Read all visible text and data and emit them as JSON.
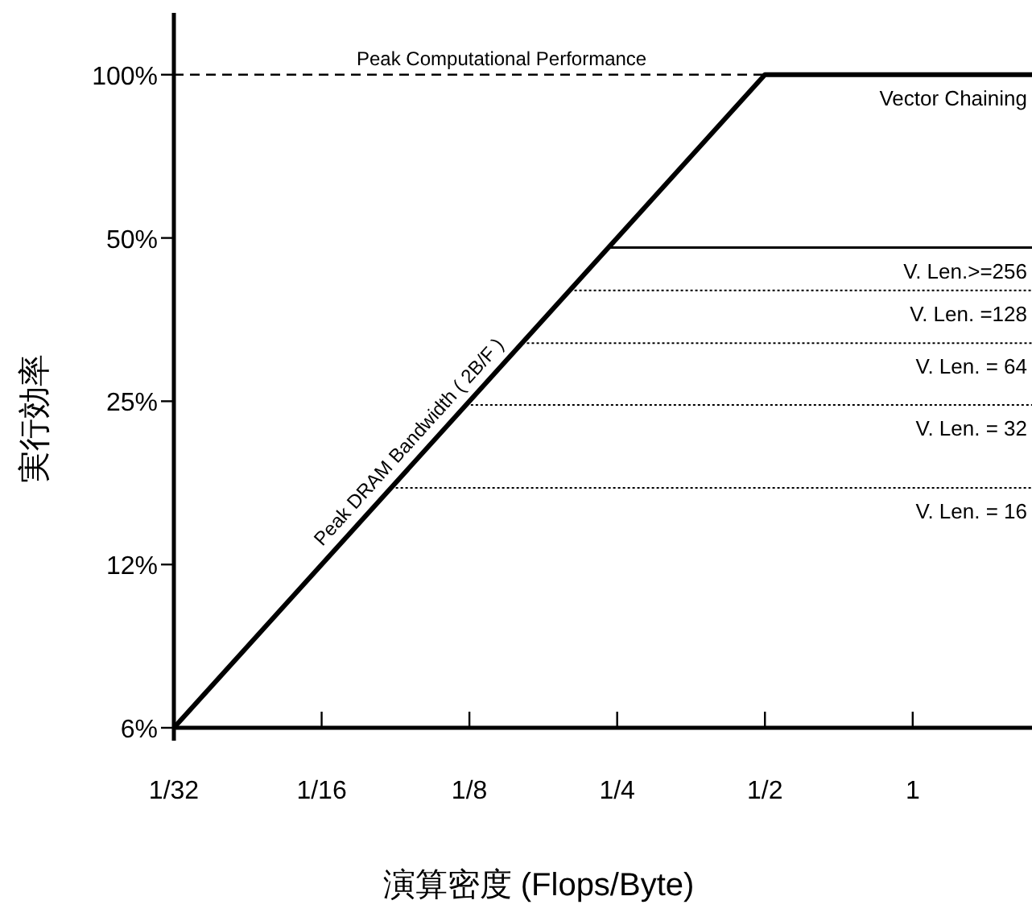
{
  "chart_data": {
    "type": "line",
    "xlabel": "演算密度 (Flops/Byte)",
    "ylabel": "実行効率",
    "log": "xy",
    "xlim": [
      0.03125,
      1.75
    ],
    "ylim": [
      6.25,
      130
    ],
    "xticks": [
      {
        "value": 0.03125,
        "label": "1/32"
      },
      {
        "value": 0.0625,
        "label": "1/16"
      },
      {
        "value": 0.125,
        "label": "1/8"
      },
      {
        "value": 0.25,
        "label": "1/4"
      },
      {
        "value": 0.5,
        "label": "1/2"
      },
      1
    ],
    "yticks": [
      {
        "value": 6.25,
        "label": "6%"
      },
      {
        "value": 12.5,
        "label": "12%"
      },
      {
        "value": 25,
        "label": "25%"
      },
      {
        "value": 50,
        "label": "50%"
      },
      {
        "value": 100,
        "label": "100%"
      }
    ],
    "series": [
      {
        "color": "#000000",
        "x": [
          0.03125,
          0.5,
          1.75
        ],
        "values": [
          6.25,
          100,
          100
        ],
        "line_style": "solid"
      },
      {
        "name": "V. Len.>=256",
        "color": "#000000",
        "x": [
          0.24,
          1.75
        ],
        "values": [
          48,
          48
        ],
        "line_style": "solid"
      },
      {
        "name": "V. Len. =128",
        "color": "#000000",
        "x": [
          0.2,
          1.75
        ],
        "values": [
          40,
          40
        ],
        "line_style": "dotted"
      },
      {
        "name": "V. Len. = 64",
        "color": "#000000",
        "x": [
          0.16,
          1.75
        ],
        "values": [
          32,
          32
        ],
        "line_style": "dotted"
      },
      {
        "name": "V. Len. = 32",
        "color": "#000000",
        "x": [
          0.123,
          1.75
        ],
        "values": [
          24.6,
          24.6
        ],
        "line_style": "dotted"
      },
      {
        "name": "V. Len. = 16",
        "color": "#000000",
        "x": [
          0.0865,
          1.75
        ],
        "values": [
          17.3,
          17.3
        ],
        "line_style": "dotted"
      }
    ],
    "ref_lines": [
      {
        "axis": "y",
        "value": 100,
        "label": "Peak Computational Performance",
        "line_style": "dashed",
        "color": "#000000"
      }
    ],
    "annotations": [
      {
        "text": "Peak DRAM Bandwidth ( 2B/F )",
        "x": 0.1,
        "y": 20
      },
      {
        "text": "Vector Chaining",
        "x": 1.75,
        "y": 100
      }
    ]
  }
}
